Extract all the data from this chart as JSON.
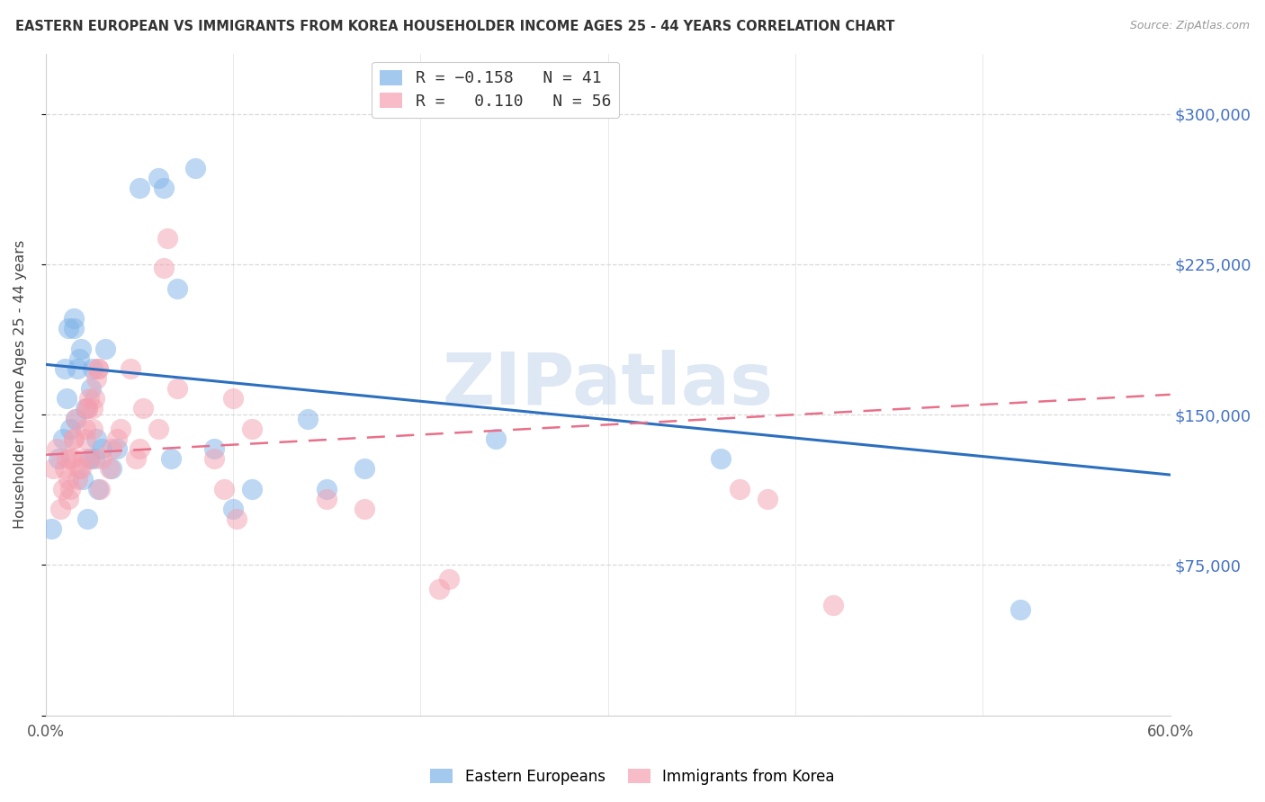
{
  "title": "EASTERN EUROPEAN VS IMMIGRANTS FROM KOREA HOUSEHOLDER INCOME AGES 25 - 44 YEARS CORRELATION CHART",
  "source": "Source: ZipAtlas.com",
  "ylabel": "Householder Income Ages 25 - 44 years",
  "xlim": [
    0.0,
    0.6
  ],
  "ylim": [
    0,
    330000
  ],
  "yticks": [
    0,
    75000,
    150000,
    225000,
    300000
  ],
  "ytick_labels": [
    "",
    "$75,000",
    "$150,000",
    "$225,000",
    "$300,000"
  ],
  "xticks": [
    0.0,
    0.1,
    0.2,
    0.3,
    0.4,
    0.5,
    0.6
  ],
  "blue_color": "#7EB3E8",
  "pink_color": "#F4A0B0",
  "blue_line_color": "#2C6FBF",
  "pink_line_color": "#E8708A",
  "right_label_color": "#4472C4",
  "legend_label1": "Eastern Europeans",
  "legend_label2": "Immigrants from Korea",
  "watermark": "ZIPatlas",
  "blue_R": -0.158,
  "blue_N": 41,
  "pink_R": 0.11,
  "pink_N": 56,
  "blue_line_x": [
    0.0,
    0.6
  ],
  "blue_line_y": [
    175000,
    120000
  ],
  "pink_line_x": [
    0.0,
    0.6
  ],
  "pink_line_y": [
    130000,
    160000
  ],
  "blue_x": [
    0.003,
    0.007,
    0.009,
    0.01,
    0.011,
    0.012,
    0.013,
    0.015,
    0.015,
    0.016,
    0.017,
    0.018,
    0.019,
    0.02,
    0.021,
    0.022,
    0.023,
    0.024,
    0.025,
    0.026,
    0.027,
    0.028,
    0.03,
    0.032,
    0.035,
    0.038,
    0.05,
    0.06,
    0.063,
    0.067,
    0.07,
    0.08,
    0.09,
    0.1,
    0.11,
    0.14,
    0.15,
    0.17,
    0.24,
    0.36,
    0.52
  ],
  "blue_y": [
    93000,
    128000,
    138000,
    173000,
    158000,
    193000,
    143000,
    193000,
    198000,
    148000,
    173000,
    178000,
    183000,
    118000,
    153000,
    98000,
    128000,
    163000,
    173000,
    128000,
    138000,
    113000,
    133000,
    183000,
    123000,
    133000,
    263000,
    268000,
    263000,
    128000,
    213000,
    273000,
    133000,
    103000,
    113000,
    148000,
    113000,
    123000,
    138000,
    128000,
    53000
  ],
  "pink_x": [
    0.004,
    0.006,
    0.008,
    0.009,
    0.01,
    0.011,
    0.012,
    0.012,
    0.013,
    0.013,
    0.014,
    0.015,
    0.015,
    0.016,
    0.017,
    0.018,
    0.019,
    0.02,
    0.021,
    0.021,
    0.022,
    0.022,
    0.023,
    0.024,
    0.025,
    0.025,
    0.026,
    0.027,
    0.028,
    0.028,
    0.029,
    0.03,
    0.034,
    0.035,
    0.038,
    0.04,
    0.045,
    0.048,
    0.05,
    0.052,
    0.06,
    0.063,
    0.065,
    0.07,
    0.09,
    0.095,
    0.1,
    0.102,
    0.11,
    0.15,
    0.17,
    0.21,
    0.215,
    0.37,
    0.385,
    0.42
  ],
  "pink_y": [
    123000,
    133000,
    103000,
    113000,
    123000,
    128000,
    108000,
    118000,
    113000,
    128000,
    128000,
    138000,
    138000,
    148000,
    118000,
    123000,
    123000,
    128000,
    138000,
    143000,
    153000,
    153000,
    158000,
    128000,
    143000,
    153000,
    158000,
    168000,
    173000,
    173000,
    113000,
    128000,
    123000,
    133000,
    138000,
    143000,
    173000,
    128000,
    133000,
    153000,
    143000,
    223000,
    238000,
    163000,
    128000,
    113000,
    158000,
    98000,
    143000,
    108000,
    103000,
    63000,
    68000,
    113000,
    108000,
    55000
  ]
}
